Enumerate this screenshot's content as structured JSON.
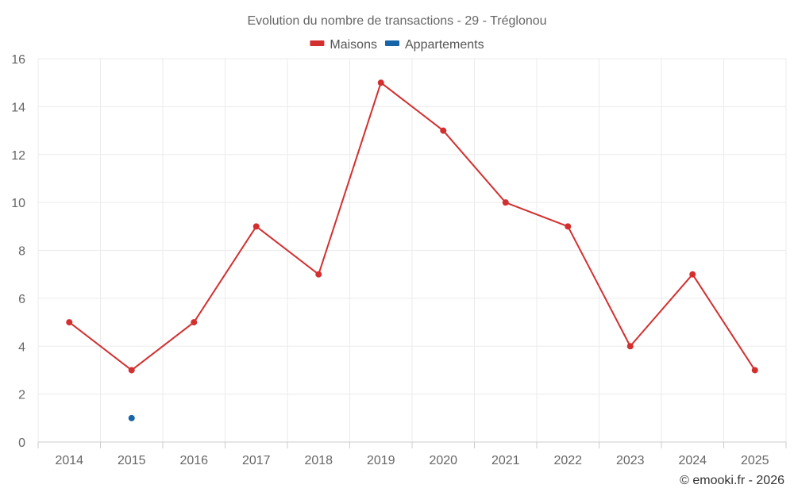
{
  "chart_data": {
    "type": "line",
    "title": "Evolution du nombre de transactions - 29 - Tréglonou",
    "categories": [
      "2014",
      "2015",
      "2016",
      "2017",
      "2018",
      "2019",
      "2020",
      "2021",
      "2022",
      "2023",
      "2024",
      "2025"
    ],
    "series": [
      {
        "name": "Maisons",
        "color": "#d32f2f",
        "values": [
          5,
          3,
          5,
          9,
          7,
          15,
          13,
          10,
          9,
          4,
          7,
          3
        ]
      },
      {
        "name": "Appartements",
        "color": "#1565a8",
        "values": [
          null,
          1,
          null,
          null,
          null,
          null,
          null,
          null,
          null,
          null,
          null,
          null
        ]
      }
    ],
    "xlabel": "",
    "ylabel": "",
    "ylim": [
      0,
      16
    ],
    "yticks": [
      "0",
      "2",
      "4",
      "6",
      "8",
      "10",
      "12",
      "14",
      "16"
    ],
    "grid": true,
    "legend_position": "top-center"
  },
  "credit": "© emooki.fr - 2026"
}
